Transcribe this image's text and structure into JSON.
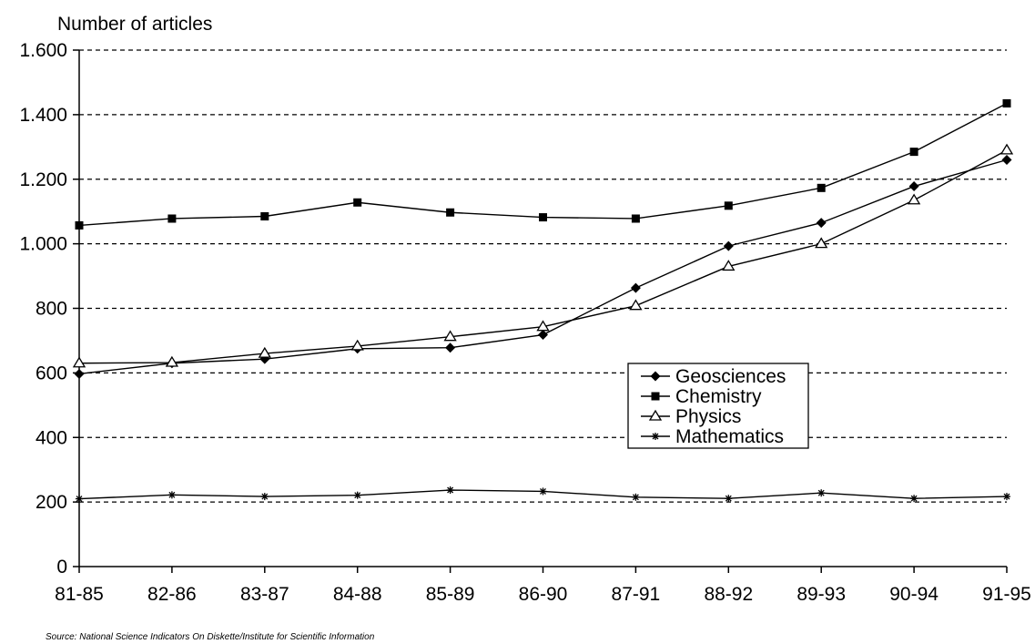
{
  "chart_data": {
    "type": "line",
    "ylabel": "Number of articles",
    "categories": [
      "81-85",
      "82-86",
      "83-87",
      "84-88",
      "85-89",
      "86-90",
      "87-91",
      "88-92",
      "89-93",
      "90-94",
      "91-95"
    ],
    "ylim": [
      0,
      1600
    ],
    "yticks": [
      0,
      200,
      400,
      600,
      800,
      1000,
      1200,
      1400,
      1600
    ],
    "ytick_labels": [
      "0",
      "200",
      "400",
      "600",
      "800",
      "1.000",
      "1.200",
      "1.400",
      "1.600"
    ],
    "grid": "horizontal dashed",
    "legend_position": "center-right",
    "series": [
      {
        "name": "Geosciences",
        "marker": "diamond",
        "values": [
          597,
          630,
          643,
          675,
          678,
          718,
          863,
          993,
          1065,
          1178,
          1260
        ]
      },
      {
        "name": "Chemistry",
        "marker": "square",
        "values": [
          1057,
          1078,
          1085,
          1128,
          1097,
          1082,
          1078,
          1118,
          1173,
          1285,
          1435
        ]
      },
      {
        "name": "Physics",
        "marker": "triangle",
        "values": [
          630,
          632,
          660,
          683,
          712,
          743,
          808,
          930,
          1000,
          1135,
          1290
        ]
      },
      {
        "name": "Mathematics",
        "marker": "star",
        "values": [
          210,
          222,
          217,
          221,
          237,
          233,
          215,
          211,
          228,
          211,
          217
        ]
      }
    ],
    "source_note": "Source: National Science Indicators On Diskette/Institute for Scientific Information"
  }
}
